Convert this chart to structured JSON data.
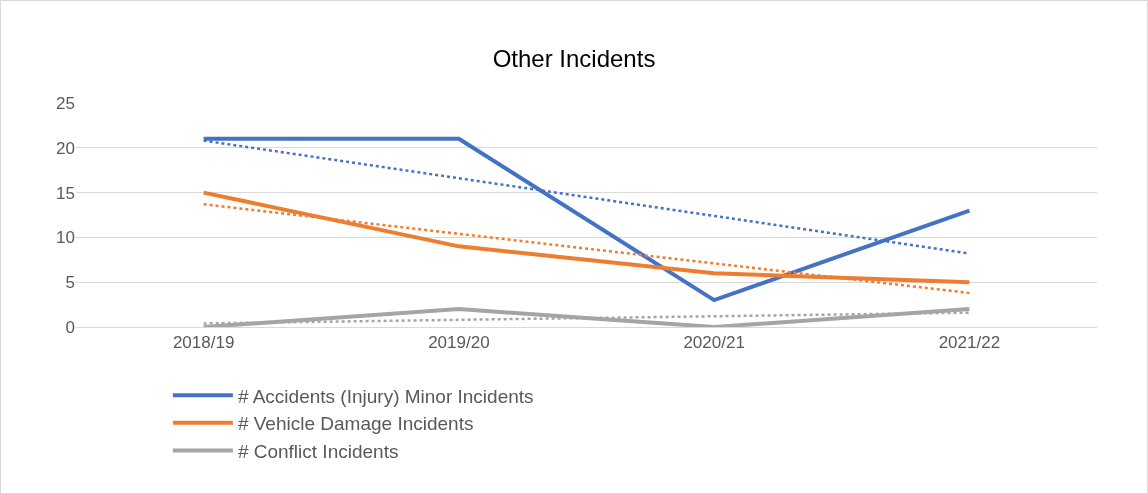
{
  "chart_data": {
    "type": "line",
    "title": "Other Incidents",
    "categories": [
      "2018/19",
      "2019/20",
      "2020/21",
      "2021/22"
    ],
    "series": [
      {
        "name": "# Accidents (Injury) Minor Incidents",
        "color": "#4472c4",
        "values": [
          21,
          21,
          3,
          13
        ]
      },
      {
        "name": "# Vehicle Damage Incidents",
        "color": "#ed7d31",
        "values": [
          15,
          9,
          6,
          5
        ]
      },
      {
        "name": "# Conflict Incidents",
        "color": "#a5a5a5",
        "values": [
          0,
          2,
          0,
          2
        ]
      },
      {
        "color": "#4472c4",
        "line_style": "dotted",
        "values": [
          20.8,
          16.6,
          12.4,
          8.2
        ]
      },
      {
        "color": "#ed7d31",
        "line_style": "dotted",
        "values": [
          13.7,
          10.4,
          7.1,
          3.8
        ]
      },
      {
        "color": "#a5a5a5",
        "line_style": "dotted",
        "values": [
          0.4,
          0.8,
          1.2,
          1.6
        ]
      }
    ],
    "ylim": [
      0,
      25
    ],
    "yticks": [
      0,
      5,
      10,
      15,
      20,
      25
    ],
    "grid": "y",
    "legend": "bottom",
    "marker": "none",
    "line_style": "solid"
  }
}
